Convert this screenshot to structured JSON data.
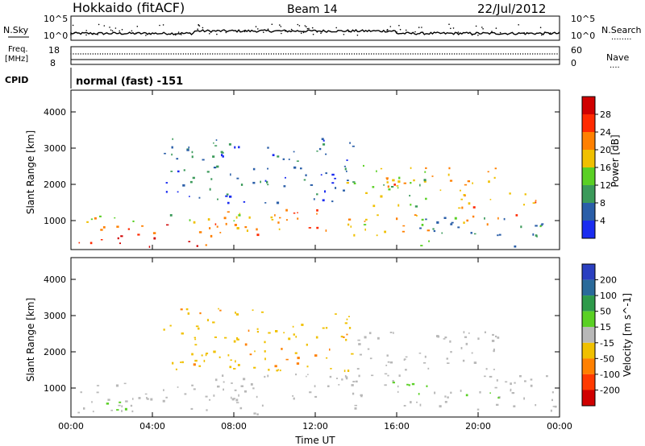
{
  "header": {
    "station": "Hokkaido (fitACF)",
    "beam": "Beam 14",
    "date": "22/Jul/2012"
  },
  "panels": {
    "nsky": {
      "left_label": "N.Sky",
      "right_label": "N.Search",
      "right_dots": "........",
      "tick_hi": "10^5",
      "tick_lo": "10^0",
      "tick_hi_r": "10^5",
      "tick_lo_r": "10^0"
    },
    "freq": {
      "left_label_1": "Freq.",
      "left_label_2": "[MHz]",
      "right_label": "Nave",
      "right_dots": "....",
      "tick_hi": "18",
      "tick_lo": "8",
      "tick_hi_r": "60",
      "tick_lo_r": "0"
    },
    "cpid": {
      "label": "CPID",
      "text": "normal (fast) -151"
    }
  },
  "chart_data": [
    {
      "type": "heatmap",
      "title": "",
      "xlabel": "",
      "ylabel": "Slant Range [km]",
      "x_ticks": [
        "00:00",
        "04:00",
        "08:00",
        "12:00",
        "16:00",
        "20:00",
        "00:00"
      ],
      "y_ticks": [
        1000,
        2000,
        3000,
        4000
      ],
      "ylim": [
        200,
        4600
      ],
      "colorbar_label": "Power [dB]",
      "colorbar_ticks": [
        4,
        8,
        12,
        16,
        20,
        24,
        28
      ],
      "colorbar_colors": [
        "#1a2cf0",
        "#2a5ea8",
        "#3b9a5a",
        "#5ad024",
        "#f0c000",
        "#ff8000",
        "#ff2a00",
        "#d00000"
      ],
      "bands": [
        {
          "t0": 0.2,
          "t1": 7.0,
          "r0": 300,
          "r1": 600,
          "level": 28
        },
        {
          "t0": 0.2,
          "t1": 9.5,
          "r0": 600,
          "r1": 900,
          "level": 24
        },
        {
          "t0": 0.2,
          "t1": 9.0,
          "r0": 900,
          "r1": 1200,
          "level": 16
        },
        {
          "t0": 7.0,
          "t1": 13.0,
          "r0": 700,
          "r1": 1400,
          "level": 24
        },
        {
          "t0": 13.0,
          "t1": 18.0,
          "r0": 600,
          "r1": 1200,
          "level": 20
        },
        {
          "t0": 13.5,
          "t1": 17.5,
          "r0": 1400,
          "r1": 2600,
          "level": 14
        },
        {
          "t0": 15.0,
          "t1": 21.0,
          "r0": 1800,
          "r1": 2500,
          "level": 20
        },
        {
          "t0": 19.0,
          "t1": 23.0,
          "r0": 900,
          "r1": 1800,
          "level": 22
        },
        {
          "t0": 17.0,
          "t1": 23.8,
          "r0": 300,
          "r1": 1100,
          "level": 10
        },
        {
          "t0": 4.5,
          "t1": 14.0,
          "r0": 1500,
          "r1": 3300,
          "level": 6
        }
      ]
    },
    {
      "type": "heatmap",
      "title": "",
      "xlabel": "Time UT",
      "ylabel": "Slant Range [km]",
      "x_ticks": [
        "00:00",
        "04:00",
        "08:00",
        "12:00",
        "16:00",
        "20:00",
        "00:00"
      ],
      "y_ticks": [
        1000,
        2000,
        3000,
        4000
      ],
      "ylim": [
        200,
        4600
      ],
      "colorbar_label": "Velocity [m s^-1]",
      "colorbar_ticks": [
        200,
        100,
        50,
        15,
        -15,
        -50,
        -100,
        -200
      ],
      "colorbar_colors": [
        "#2a3fc0",
        "#2a6a9a",
        "#2e9a4a",
        "#5ad024",
        "#b8b8b8",
        "#f0c000",
        "#ff8000",
        "#ff3a00",
        "#d00000"
      ],
      "bands": [
        {
          "t0": 0.2,
          "t1": 9.5,
          "r0": 300,
          "r1": 1200,
          "level": 0
        },
        {
          "t0": 0.5,
          "t1": 3.0,
          "r0": 400,
          "r1": 700,
          "level": 30
        },
        {
          "t0": 7.0,
          "t1": 13.0,
          "r0": 700,
          "r1": 1400,
          "level": 0
        },
        {
          "t0": 13.0,
          "t1": 23.8,
          "r0": 400,
          "r1": 1400,
          "level": 0
        },
        {
          "t0": 13.5,
          "t1": 21.0,
          "r0": 1400,
          "r1": 2600,
          "level": 0
        },
        {
          "t0": 15.5,
          "t1": 17.5,
          "r0": 800,
          "r1": 1300,
          "level": 30
        },
        {
          "t0": 19.0,
          "t1": 21.0,
          "r0": 700,
          "r1": 1000,
          "level": 30
        },
        {
          "t0": 4.5,
          "t1": 14.0,
          "r0": 1500,
          "r1": 3300,
          "level": -40
        }
      ]
    }
  ]
}
